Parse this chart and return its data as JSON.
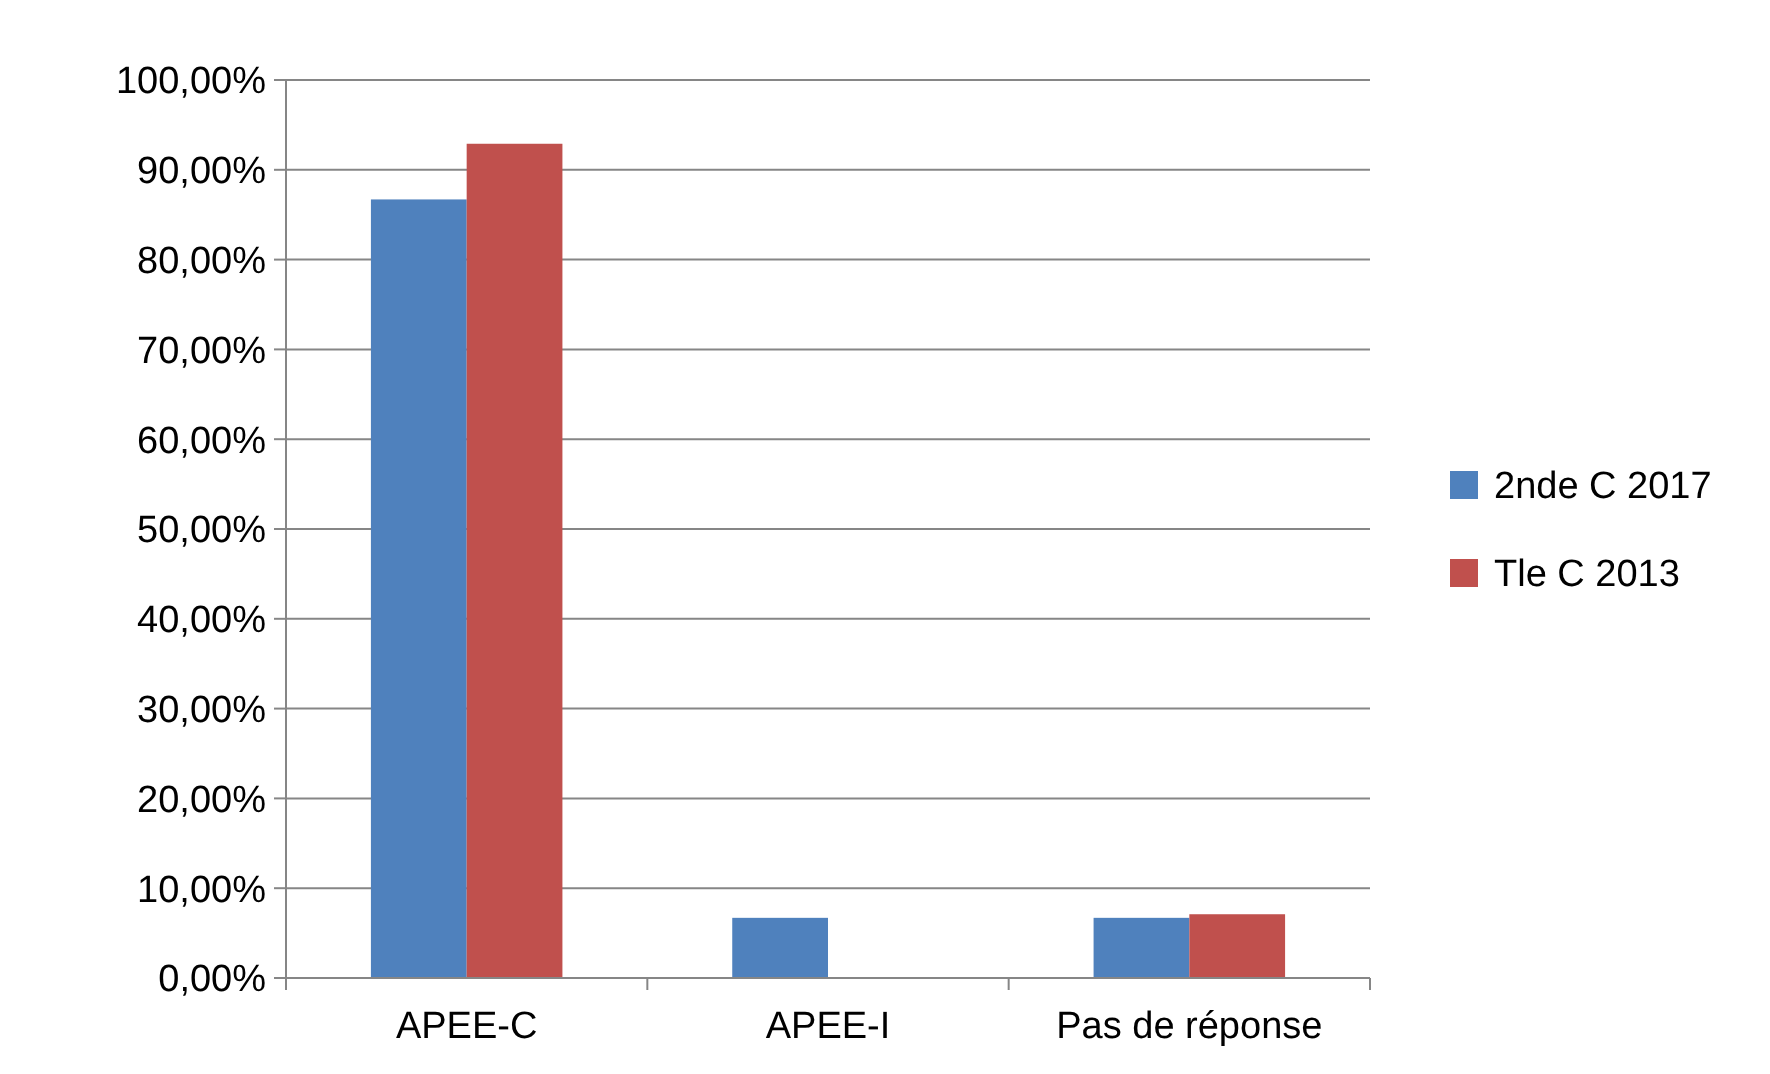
{
  "chart_data": {
    "type": "bar",
    "categories": [
      "APEE-C",
      "APEE-I",
      "Pas de réponse"
    ],
    "series": [
      {
        "name": "2nde C 2017",
        "color": "#4f81bd",
        "values": [
          86.7,
          6.7,
          6.7
        ]
      },
      {
        "name": "Tle C 2013",
        "color": "#c0504d",
        "values": [
          92.9,
          0,
          7.1
        ]
      }
    ],
    "ylim": [
      0,
      100
    ],
    "yticks": [
      {
        "value": 0,
        "label": "0,00%"
      },
      {
        "value": 10,
        "label": "10,00%"
      },
      {
        "value": 20,
        "label": "20,00%"
      },
      {
        "value": 30,
        "label": "30,00%"
      },
      {
        "value": 40,
        "label": "40,00%"
      },
      {
        "value": 50,
        "label": "50,00%"
      },
      {
        "value": 60,
        "label": "60,00%"
      },
      {
        "value": 70,
        "label": "70,00%"
      },
      {
        "value": 80,
        "label": "80,00%"
      },
      {
        "value": 90,
        "label": "90,00%"
      },
      {
        "value": 100,
        "label": "100,00%"
      }
    ],
    "grid": "y",
    "legend": "right"
  }
}
